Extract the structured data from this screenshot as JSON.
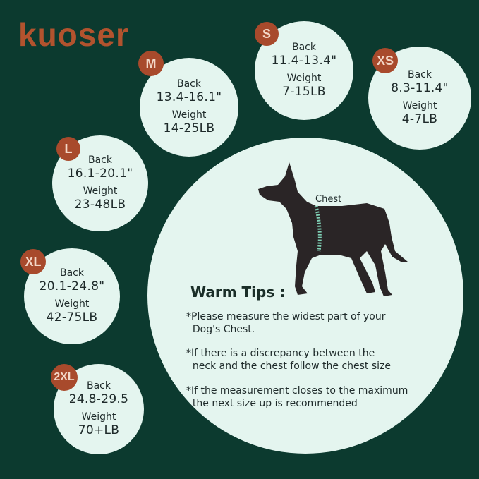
{
  "brand": {
    "logo": "kuoser"
  },
  "colors": {
    "background": "#0c3a2f",
    "circle": "#e4f5ef",
    "badge": "#a84a2c"
  },
  "sizes": [
    {
      "size": "M",
      "back_label": "Back",
      "back": "13.4-16.1\"",
      "weight_label": "Weight",
      "weight": "14-25LB"
    },
    {
      "size": "S",
      "back_label": "Back",
      "back": "11.4-13.4\"",
      "weight_label": "Weight",
      "weight": "7-15LB"
    },
    {
      "size": "XS",
      "back_label": "Back",
      "back": "8.3-11.4\"",
      "weight_label": "Weight",
      "weight": "4-7LB"
    },
    {
      "size": "L",
      "back_label": "Back",
      "back": "16.1-20.1\"",
      "weight_label": "Weight",
      "weight": "23-48LB"
    },
    {
      "size": "XL",
      "back_label": "Back",
      "back": "20.1-24.8\"",
      "weight_label": "Weight",
      "weight": "42-75LB"
    },
    {
      "size": "2XL",
      "back_label": "Back",
      "back": "24.8-29.5",
      "weight_label": "Weight",
      "weight": "70+LB"
    }
  ],
  "diagram": {
    "chest_label": "Chest"
  },
  "tips": {
    "title": "Warm Tips :",
    "items": [
      "*Please measure the widest part of your\n  Dog's Chest.",
      "*If there is a discrepancy between the\n  neck and the chest follow the chest size",
      "*If the measurement closes to the maximum\n  the next size up is recommended"
    ]
  }
}
